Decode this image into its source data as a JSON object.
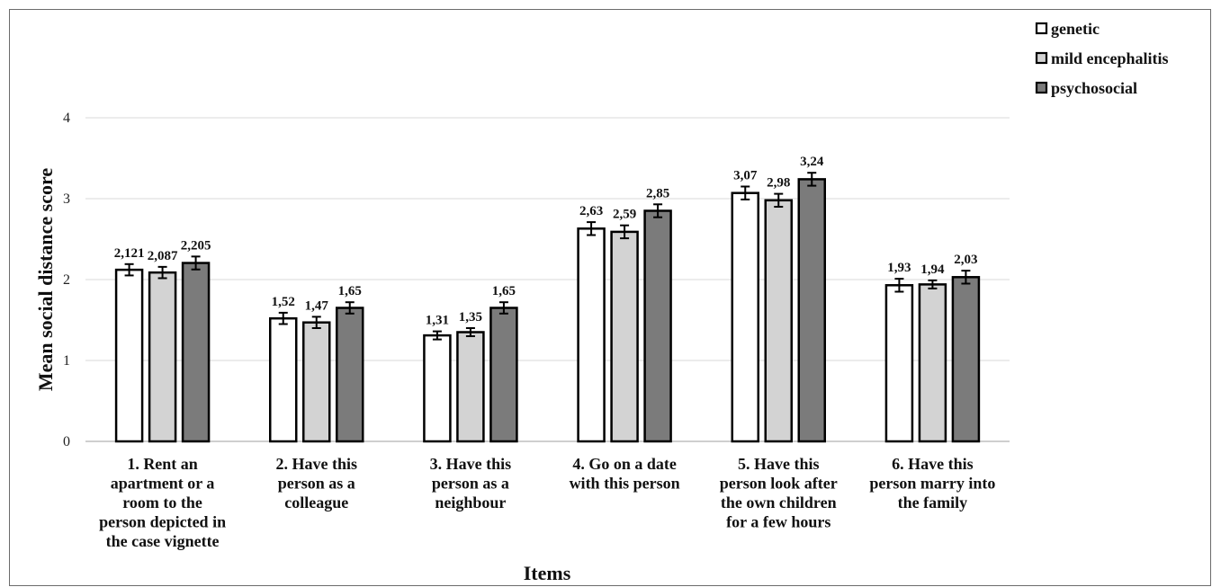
{
  "chart_data": {
    "type": "bar",
    "title": "",
    "xlabel": "Items",
    "ylabel": "Mean social distance score",
    "ylim": [
      0,
      4
    ],
    "yticks": [
      0,
      1,
      2,
      3,
      4
    ],
    "grid": true,
    "legend_position": "top-right",
    "categories": [
      [
        "1. Rent an",
        "apartment or a",
        "room to the",
        "person depicted in",
        "the case vignette"
      ],
      [
        "2. Have this",
        "person as a",
        "colleague"
      ],
      [
        "3. Have this",
        "person as a",
        "neighbour"
      ],
      [
        "4. Go on a date",
        "with this person"
      ],
      [
        "5. Have this",
        "person look after",
        "the own children",
        "for a few hours"
      ],
      [
        "6. Have this",
        "person marry into",
        "the family"
      ]
    ],
    "series": [
      {
        "name": "genetic",
        "color": "#ffffff",
        "values": [
          2.121,
          1.52,
          1.31,
          2.63,
          3.07,
          1.93
        ],
        "labels": [
          "2,121",
          "1,52",
          "1,31",
          "2,63",
          "3,07",
          "1,93"
        ],
        "errors": [
          0.07,
          0.07,
          0.05,
          0.08,
          0.08,
          0.08
        ]
      },
      {
        "name": "mild encephalitis",
        "color": "#d3d3d3",
        "values": [
          2.087,
          1.47,
          1.35,
          2.59,
          2.98,
          1.94
        ],
        "labels": [
          "2,087",
          "1,47",
          "1,35",
          "2,59",
          "2,98",
          "1,94"
        ],
        "errors": [
          0.07,
          0.07,
          0.05,
          0.08,
          0.08,
          0.05
        ]
      },
      {
        "name": "psychosocial",
        "color": "#7b7b7b",
        "values": [
          2.205,
          1.65,
          1.65,
          2.85,
          3.24,
          2.03
        ],
        "labels": [
          "2,205",
          "1,65",
          "1,65",
          "2,85",
          "3,24",
          "2,03"
        ],
        "errors": [
          0.08,
          0.07,
          0.07,
          0.08,
          0.08,
          0.08
        ]
      }
    ]
  }
}
